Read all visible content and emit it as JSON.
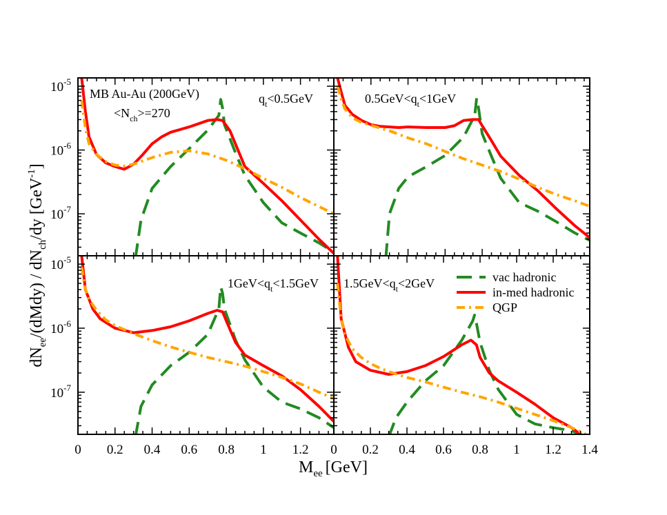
{
  "chart_data": {
    "type": "line",
    "x_axis": {
      "label": "M",
      "label_sub": "ee",
      "label_unit": "[GeV]",
      "ticks": [
        "0",
        "0.2",
        "0.4",
        "0.6",
        "0.8",
        "1",
        "1.2"
      ],
      "ticks_right": [
        "0",
        "0.2",
        "0.4",
        "0.6",
        "0.8",
        "1",
        "1.2",
        "1.4"
      ],
      "range": [
        0,
        1.4
      ]
    },
    "y_axis": {
      "label_parts": [
        "dN",
        "ee",
        "/(dMdy)  / dN",
        "ch",
        "/dy  [GeV",
        "-1",
        "]"
      ],
      "ticks": [
        {
          "base": "10",
          "exp": "-5",
          "value": 1e-05
        },
        {
          "base": "10",
          "exp": "-6",
          "value": 1e-06
        },
        {
          "base": "10",
          "exp": "-7",
          "value": 1e-07
        }
      ],
      "range": [
        2.2e-08,
        1.35e-05
      ],
      "scale": "log"
    },
    "panels": [
      {
        "id": "tl",
        "label": "q<sub>t</sub>&lt;0.5GeV",
        "label_parts": [
          "q",
          "t",
          "<0.5GeV"
        ],
        "extra_text": [
          "MB Au-Au (200GeV)",
          "<N",
          "ch",
          ">=270"
        ],
        "series": [
          {
            "name": "vac hadronic",
            "x": [
              0.31,
              0.34,
              0.4,
              0.5,
              0.6,
              0.7,
              0.76,
              0.77,
              0.78,
              0.79,
              0.85,
              0.9,
              1.0,
              1.1,
              1.2,
              1.3,
              1.38
            ],
            "y": [
              2e-08,
              8e-08,
              2.5e-07,
              5.5e-07,
              1.05e-06,
              2.05e-06,
              3.5e-06,
              6.2e-06,
              4.5e-06,
              2.5e-06,
              9e-07,
              4e-07,
              1.5e-07,
              7.2e-08,
              5e-08,
              3.5e-08,
              2.5e-08
            ]
          },
          {
            "name": "in-med hadronic",
            "x": [
              0.02,
              0.04,
              0.06,
              0.1,
              0.15,
              0.2,
              0.25,
              0.3,
              0.35,
              0.4,
              0.45,
              0.5,
              0.6,
              0.7,
              0.75,
              0.78,
              0.82,
              0.9,
              1.0,
              1.1,
              1.2,
              1.3,
              1.38
            ],
            "y": [
              1.35e-05,
              4e-06,
              1.6e-06,
              8.5e-07,
              6.3e-07,
              5.5e-07,
              5e-07,
              6e-07,
              8.5e-07,
              1.25e-06,
              1.6e-06,
              1.9e-06,
              2.3e-06,
              2.9e-06,
              3e-06,
              2.9e-06,
              2e-06,
              5.5e-07,
              3e-07,
              1.6e-07,
              8e-08,
              4e-08,
              2.4e-08
            ]
          },
          {
            "name": "QGP",
            "x": [
              0.02,
              0.04,
              0.06,
              0.1,
              0.15,
              0.2,
              0.25,
              0.3,
              0.4,
              0.5,
              0.6,
              0.7,
              0.8,
              0.9,
              1.0,
              1.1,
              1.2,
              1.3,
              1.38
            ],
            "y": [
              6e-06,
              2.2e-06,
              1.25e-06,
              8.5e-07,
              6.6e-07,
              5.8e-07,
              5.6e-07,
              6e-07,
              7.6e-07,
              9.2e-07,
              9.7e-07,
              8.7e-07,
              6.9e-07,
              5.1e-07,
              3.6e-07,
              2.6e-07,
              1.8e-07,
              1.3e-07,
              1e-07
            ]
          }
        ]
      },
      {
        "id": "tr",
        "label_parts": [
          "0.5GeV<q",
          "t",
          "<1GeV"
        ],
        "series": [
          {
            "name": "vac hadronic",
            "x": [
              0.28,
              0.3,
              0.35,
              0.4,
              0.5,
              0.6,
              0.7,
              0.76,
              0.77,
              0.78,
              0.8,
              0.85,
              0.9,
              1.0,
              1.1,
              1.2,
              1.3,
              1.4
            ],
            "y": [
              2e-08,
              1e-07,
              2.5e-07,
              3.8e-07,
              5.5e-07,
              8.2e-07,
              1.6e-06,
              3.5e-06,
              6.5e-06,
              4.6e-06,
              1.8e-06,
              8e-07,
              3.6e-07,
              1.5e-07,
              1.1e-07,
              7.5e-08,
              5e-08,
              3.6e-08
            ]
          },
          {
            "name": "in-med hadronic",
            "x": [
              0.02,
              0.04,
              0.06,
              0.1,
              0.15,
              0.2,
              0.25,
              0.3,
              0.35,
              0.4,
              0.5,
              0.6,
              0.65,
              0.7,
              0.75,
              0.78,
              0.8,
              0.85,
              0.9,
              1.0,
              1.1,
              1.2,
              1.3,
              1.4
            ],
            "y": [
              1.35e-05,
              8e-06,
              5e-06,
              3.6e-06,
              2.9e-06,
              2.5e-06,
              2.35e-06,
              2.3e-06,
              2.25e-06,
              2.3e-06,
              2.25e-06,
              2.25e-06,
              2.4e-06,
              2.9e-06,
              3e-06,
              3e-06,
              2.4e-06,
              1.4e-06,
              8e-07,
              4e-07,
              2.3e-07,
              1.2e-07,
              6.5e-08,
              3.8e-08
            ]
          },
          {
            "name": "QGP",
            "x": [
              0.02,
              0.04,
              0.06,
              0.1,
              0.15,
              0.2,
              0.25,
              0.3,
              0.4,
              0.5,
              0.6,
              0.7,
              0.8,
              0.9,
              1.0,
              1.1,
              1.2,
              1.3,
              1.4
            ],
            "y": [
              1e-05,
              6.2e-06,
              4.4e-06,
              3.2e-06,
              2.7e-06,
              2.45e-06,
              2.2e-06,
              2e-06,
              1.55e-06,
              1.25e-06,
              9.5e-07,
              7.3e-07,
              5.8e-07,
              4.6e-07,
              3.5e-07,
              2.6e-07,
              2e-07,
              1.6e-07,
              1.25e-07
            ]
          }
        ]
      },
      {
        "id": "bl",
        "label_parts": [
          "1GeV<q",
          "t",
          "<1.5GeV"
        ],
        "series": [
          {
            "name": "vac hadronic",
            "x": [
              0.31,
              0.34,
              0.4,
              0.5,
              0.6,
              0.7,
              0.76,
              0.77,
              0.78,
              0.79,
              0.85,
              0.9,
              1.0,
              1.1,
              1.2,
              1.3,
              1.38
            ],
            "y": [
              2e-08,
              6e-08,
              1.3e-07,
              2.6e-07,
              4.2e-07,
              8e-07,
              2e-06,
              4.4e-06,
              3.5e-06,
              2e-06,
              6.5e-07,
              3.2e-07,
              1.2e-07,
              7e-08,
              5.5e-08,
              4e-08,
              2.8e-08
            ]
          },
          {
            "name": "in-med hadronic",
            "x": [
              0.02,
              0.04,
              0.08,
              0.12,
              0.2,
              0.3,
              0.4,
              0.5,
              0.6,
              0.7,
              0.75,
              0.78,
              0.8,
              0.85,
              0.9,
              1.0,
              1.1,
              1.2,
              1.3,
              1.38
            ],
            "y": [
              1.35e-05,
              4e-06,
              2e-06,
              1.4e-06,
              1e-06,
              8.5e-07,
              9.2e-07,
              1.05e-06,
              1.3e-06,
              1.7e-06,
              1.9e-06,
              1.8e-06,
              1.3e-06,
              6e-07,
              3.8e-07,
              2.6e-07,
              1.8e-07,
              1.1e-07,
              6e-08,
              3.5e-08
            ]
          },
          {
            "name": "QGP",
            "x": [
              0.02,
              0.04,
              0.06,
              0.1,
              0.15,
              0.2,
              0.25,
              0.3,
              0.4,
              0.5,
              0.6,
              0.7,
              0.8,
              0.9,
              1.0,
              1.1,
              1.2,
              1.3,
              1.38
            ],
            "y": [
              9e-06,
              4e-06,
              2.8e-06,
              1.9e-06,
              1.35e-06,
              1.1e-06,
              9.5e-07,
              8.2e-07,
              6.4e-07,
              5.1e-07,
              4.2e-07,
              3.5e-07,
              3e-07,
              2.55e-07,
              2.1e-07,
              1.7e-07,
              1.35e-07,
              1e-07,
              8e-08
            ]
          }
        ]
      },
      {
        "id": "br",
        "label_parts": [
          "1.5GeV<q",
          "t",
          "<2GeV"
        ],
        "legend": true,
        "series": [
          {
            "name": "vac hadronic",
            "x": [
              0.3,
              0.34,
              0.4,
              0.5,
              0.6,
              0.7,
              0.76,
              0.77,
              0.78,
              0.8,
              0.85,
              0.9,
              1.0,
              1.1,
              1.2,
              1.3,
              1.38
            ],
            "y": [
              2e-08,
              4e-08,
              7e-08,
              1.5e-07,
              2.6e-07,
              6.5e-07,
              1.3e-06,
              1.6e-06,
              1.2e-06,
              6e-07,
              2.2e-07,
              1.1e-07,
              4.5e-08,
              3.2e-08,
              2.8e-08,
              2.5e-08,
              2e-08
            ]
          },
          {
            "name": "in-med hadronic",
            "x": [
              0.02,
              0.04,
              0.08,
              0.12,
              0.2,
              0.3,
              0.4,
              0.5,
              0.6,
              0.7,
              0.75,
              0.78,
              0.8,
              0.85,
              0.9,
              1.0,
              1.1,
              1.2,
              1.3,
              1.38
            ],
            "y": [
              1.35e-05,
              1.4e-06,
              5e-07,
              3e-07,
              2.2e-07,
              1.9e-07,
              2.1e-07,
              2.6e-07,
              3.6e-07,
              5.5e-07,
              6.5e-07,
              5.5e-07,
              3.5e-07,
              2e-07,
              1.5e-07,
              1e-07,
              6.5e-08,
              4e-08,
              2.8e-08,
              1.9e-08
            ]
          },
          {
            "name": "QGP",
            "x": [
              0.02,
              0.04,
              0.06,
              0.1,
              0.15,
              0.2,
              0.25,
              0.3,
              0.4,
              0.5,
              0.6,
              0.7,
              0.8,
              0.9,
              1.0,
              1.1,
              1.2,
              1.3,
              1.38
            ],
            "y": [
              5e-06,
              1.4e-06,
              8e-07,
              4.8e-07,
              3.5e-07,
              2.8e-07,
              2.4e-07,
              2.1e-07,
              1.7e-07,
              1.45e-07,
              1.2e-07,
              1e-07,
              8.5e-08,
              7e-08,
              5.6e-08,
              4.5e-08,
              3.6e-08,
              2.8e-08,
              2.2e-08
            ]
          }
        ]
      }
    ],
    "legend": [
      {
        "name": "vac hadronic",
        "color": "#228B22",
        "dash": "dash"
      },
      {
        "name": "in-med hadronic",
        "color": "#FF0000",
        "dash": "solid"
      },
      {
        "name": "QGP",
        "color": "#FFA500",
        "dash": "dashdot"
      }
    ]
  }
}
